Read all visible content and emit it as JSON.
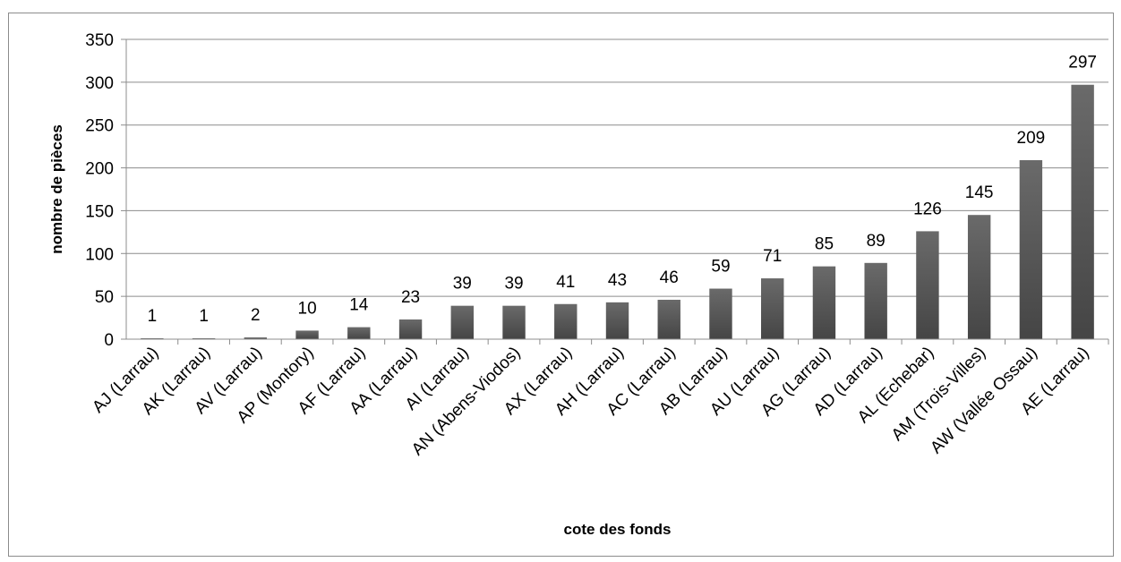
{
  "chart_data": {
    "type": "bar",
    "title": "",
    "xlabel": "cote des fonds",
    "ylabel": "nombre de pièces",
    "ylim": [
      0,
      350
    ],
    "yticks": [
      0,
      50,
      100,
      150,
      200,
      250,
      300,
      350
    ],
    "grid": true,
    "legend": "none",
    "categories": [
      "AJ (Larrau)",
      "AK (Larrau)",
      "AV (Larrau)",
      "AP (Montory)",
      "AF (Larrau)",
      "AA (Larrau)",
      "AI (Larrau)",
      "AN (Abens-Viodos)",
      "AX (Larrau)",
      "AH (Larrau)",
      "AC (Larrau)",
      "AB (Larrau)",
      "AU (Larrau)",
      "AG (Larrau)",
      "AD (Larrau)",
      "AL (Echebar)",
      "AM (Trois-Villes)",
      "AW (Vallée Ossau)",
      "AE (Larrau)"
    ],
    "values": [
      1,
      1,
      2,
      10,
      14,
      23,
      39,
      39,
      41,
      43,
      46,
      59,
      71,
      85,
      89,
      126,
      145,
      209,
      297
    ],
    "colors": {
      "bar_top": "#6a6a6a",
      "bar_bottom": "#454545",
      "grid": "#8c8c8c"
    }
  }
}
